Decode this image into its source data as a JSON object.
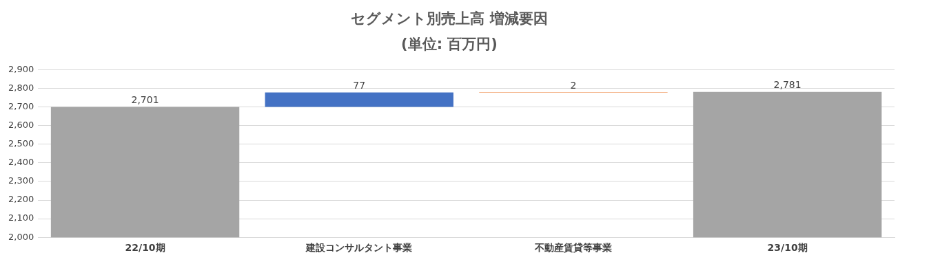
{
  "chart_data": {
    "type": "bar",
    "title": "セグメント別売上高 増減要因",
    "subtitle": "(単位: 百万円)",
    "categories": [
      "22/10期",
      "建設コンサルタント事業",
      "不動産賃貸等事業",
      "23/10期"
    ],
    "values": [
      2701,
      77,
      2,
      2781
    ],
    "base": [
      null,
      2701,
      2778,
      null
    ],
    "colors": [
      "#a5a5a5",
      "#4472c4",
      "#ed7d31",
      "#a5a5a5"
    ],
    "value_labels": [
      "2,701",
      "77",
      "2",
      "2,781"
    ],
    "ylim": [
      2000,
      2900
    ],
    "yticks": [
      {
        "value": 2000,
        "label": "2,000"
      },
      {
        "value": 2100,
        "label": "2,100"
      },
      {
        "value": 2200,
        "label": "2,200"
      },
      {
        "value": 2300,
        "label": "2,300"
      },
      {
        "value": 2400,
        "label": "2,400"
      },
      {
        "value": 2500,
        "label": "2,500"
      },
      {
        "value": 2600,
        "label": "2,600"
      },
      {
        "value": 2700,
        "label": "2,700"
      },
      {
        "value": 2800,
        "label": "2,800"
      },
      {
        "value": 2900,
        "label": "2,900"
      }
    ],
    "grid": "y",
    "legend": false
  }
}
